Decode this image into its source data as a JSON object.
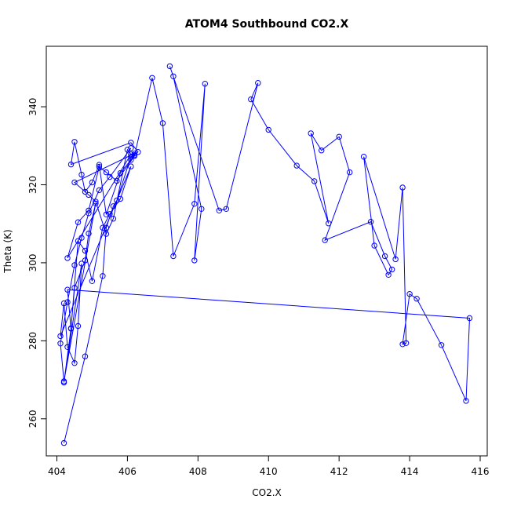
{
  "chart_data": {
    "type": "scatter",
    "title": "ATOM4 Southbound CO2.X",
    "xlabel": "CO2.X",
    "ylabel": "Theta (K)",
    "xlim": [
      403.7,
      416.2
    ],
    "ylim": [
      250.5,
      355.5
    ],
    "xticks": [
      404,
      406,
      408,
      410,
      412,
      414,
      416
    ],
    "yticks": [
      260,
      280,
      300,
      320,
      340
    ],
    "grid": false,
    "markers": "open circles connected by lines",
    "color": "#0000ff",
    "series": [
      {
        "x": [
          404.2,
          404.8,
          405.3,
          405.4,
          405.6,
          405.7,
          406.1,
          406.2,
          406.3,
          406.1,
          404.4,
          404.5,
          404.7,
          404.8,
          405.0,
          405.2,
          405.4,
          405.8,
          406.1,
          406.2,
          404.5,
          404.9,
          405.1,
          405.4,
          405.6,
          406.0,
          406.1,
          404.3,
          404.6,
          404.9,
          405.2,
          405.4,
          405.7,
          406.2,
          406.7,
          407.0,
          407.3,
          407.9,
          408.2,
          407.9,
          408.1,
          407.3,
          407.2,
          408.6,
          408.8,
          409.7,
          409.5,
          410.0,
          410.8,
          411.3,
          411.7,
          411.2,
          411.5,
          412.0,
          412.3,
          411.6,
          412.9,
          413.3,
          413.5,
          413.4,
          413.0,
          412.7,
          413.6,
          413.8,
          413.9,
          413.8,
          414.0,
          414.2,
          414.9,
          415.6,
          415.7,
          404.3,
          404.4,
          404.6,
          404.8,
          405.0,
          405.3,
          405.5,
          405.8,
          406.1,
          404.1,
          404.2,
          404.3,
          404.5,
          404.6,
          404.7,
          404.2,
          404.4,
          404.5,
          404.8,
          404.9,
          405.1,
          404.2,
          404.1,
          404.3,
          404.5,
          404.7,
          404.9,
          405.2,
          405.5,
          406.1
        ],
        "y": [
          253.8,
          276.0,
          296.6,
          309.0,
          314.5,
          316.0,
          327.2,
          327.6,
          328.4,
          330.8,
          325.2,
          331.0,
          322.6,
          318.2,
          320.6,
          325.1,
          312.4,
          323.0,
          326.4,
          328.0,
          320.6,
          317.4,
          315.7,
          307.4,
          311.3,
          329.0,
          327.8,
          301.2,
          310.4,
          313.4,
          324.6,
          323.2,
          321.0,
          327.4,
          347.4,
          335.8,
          301.7,
          315.1,
          345.9,
          300.6,
          313.8,
          347.8,
          350.4,
          313.4,
          313.8,
          346.1,
          341.9,
          334.1,
          324.9,
          320.9,
          310.1,
          333.2,
          328.8,
          332.3,
          323.2,
          305.8,
          310.5,
          301.7,
          298.3,
          296.9,
          304.4,
          327.2,
          300.9,
          319.3,
          279.4,
          279.1,
          292.0,
          290.8,
          278.9,
          264.6,
          285.8,
          293.1,
          283.1,
          305.6,
          303.1,
          295.3,
          309.0,
          312.5,
          316.4,
          324.7,
          281.2,
          289.6,
          278.4,
          274.3,
          283.8,
          299.8,
          269.3,
          283.2,
          293.6,
          300.6,
          307.5,
          315.2,
          269.6,
          279.3,
          289.9,
          299.4,
          306.4,
          312.7,
          318.6,
          322.0,
          329.4
        ]
      }
    ]
  }
}
